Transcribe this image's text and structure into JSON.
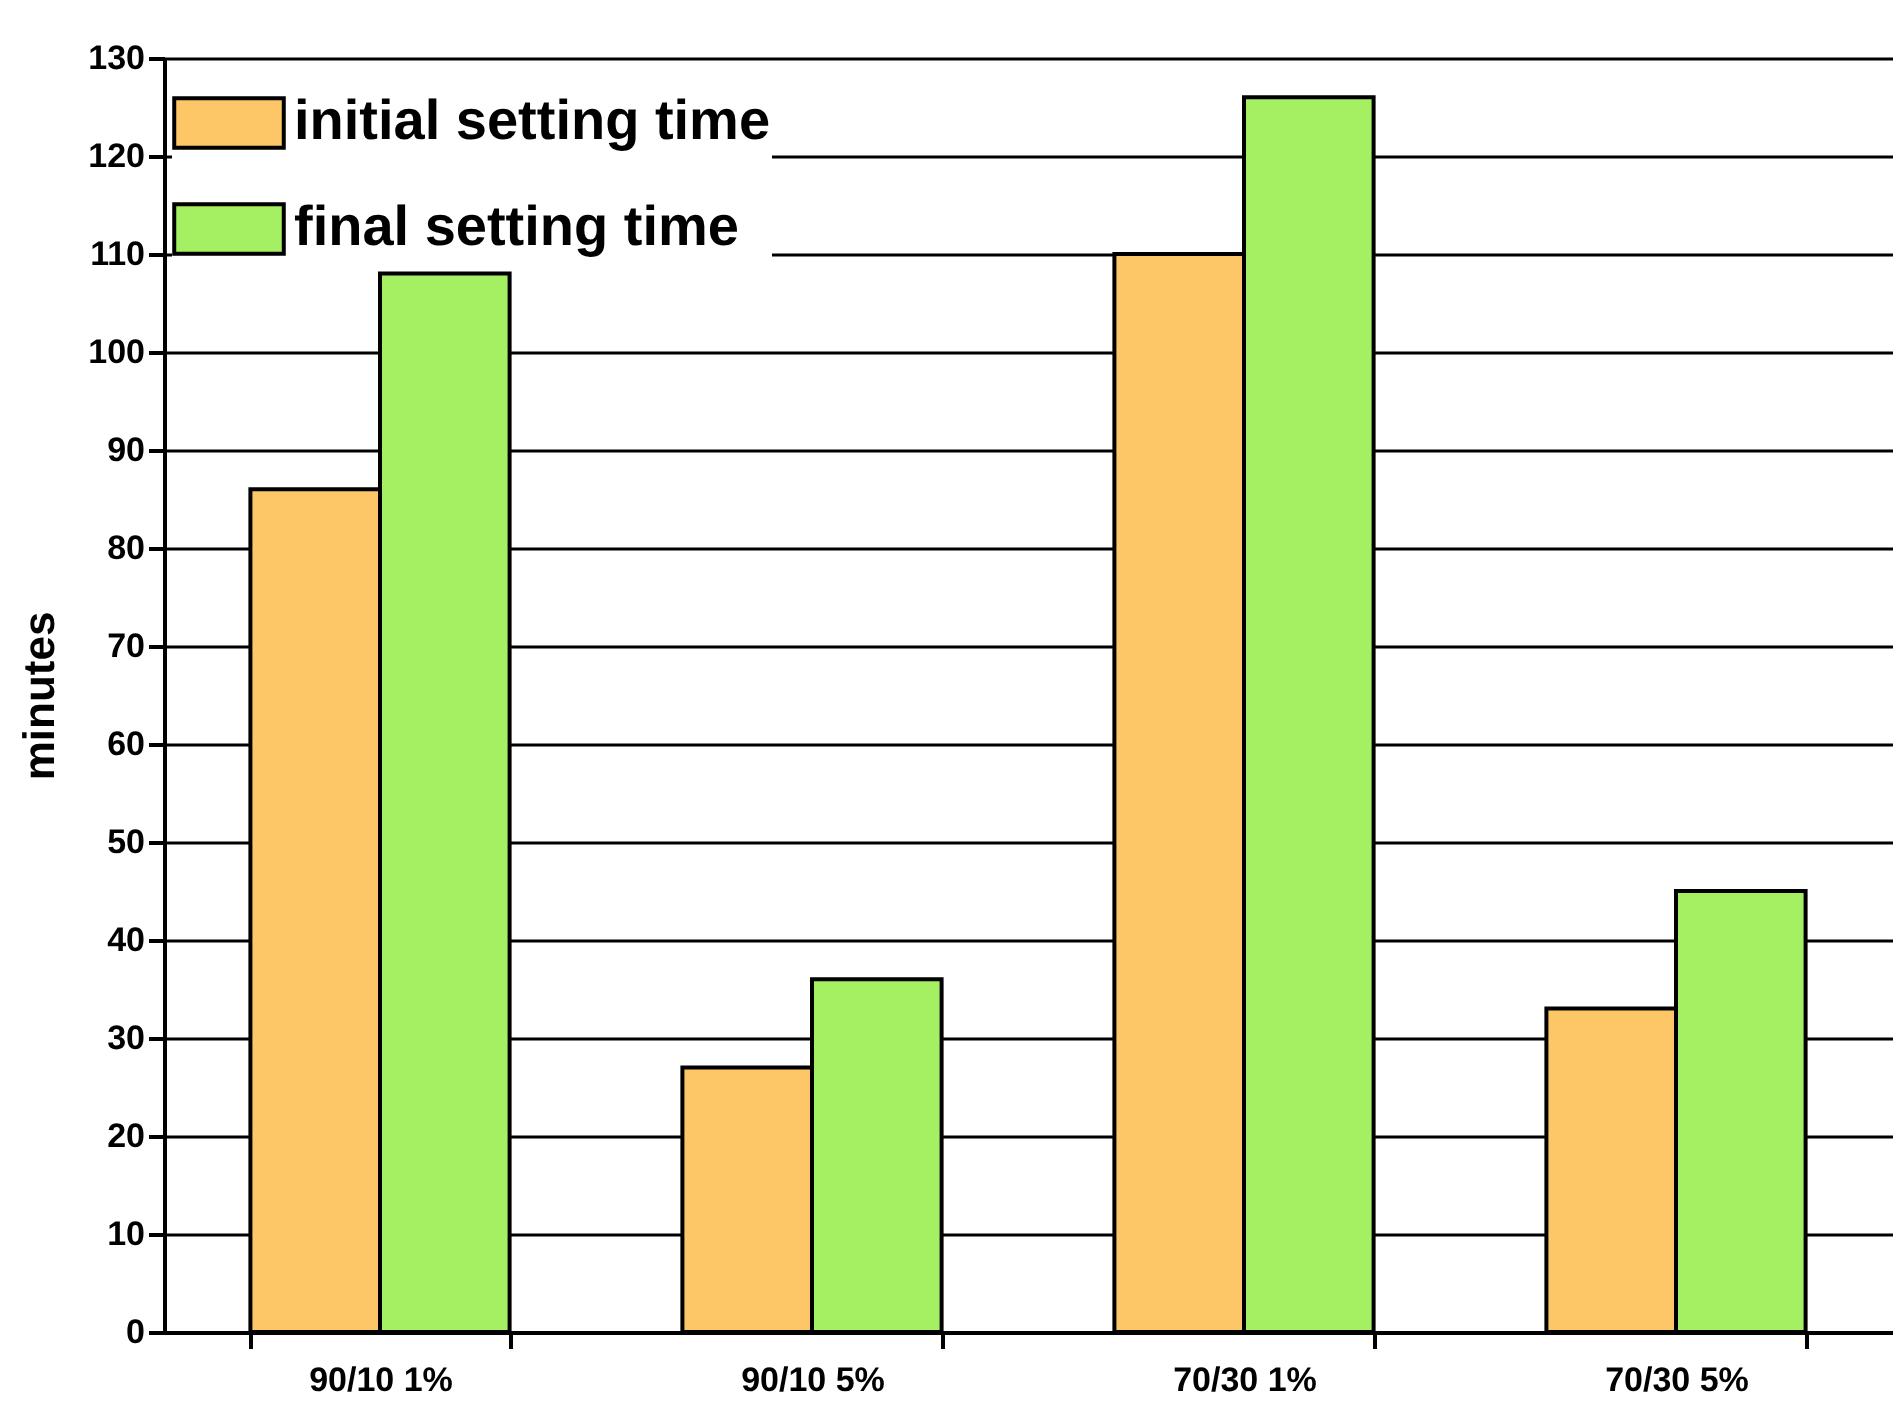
{
  "chart_data": {
    "type": "bar",
    "ylabel": "minutes",
    "categories": [
      "90/10 1%",
      "90/10 5%",
      "70/30 1%",
      "70/30 5%"
    ],
    "series": [
      {
        "name": "initial setting time",
        "color": "#fdc667",
        "values": [
          86,
          27,
          110,
          33
        ]
      },
      {
        "name": "final setting time",
        "color": "#a5ef62",
        "values": [
          108,
          36,
          126,
          45
        ]
      }
    ],
    "ylim": [
      0,
      130
    ],
    "yticks": [
      0,
      10,
      20,
      30,
      40,
      50,
      60,
      70,
      80,
      90,
      100,
      110,
      120,
      130
    ],
    "grid": "y",
    "legend": "top left"
  }
}
